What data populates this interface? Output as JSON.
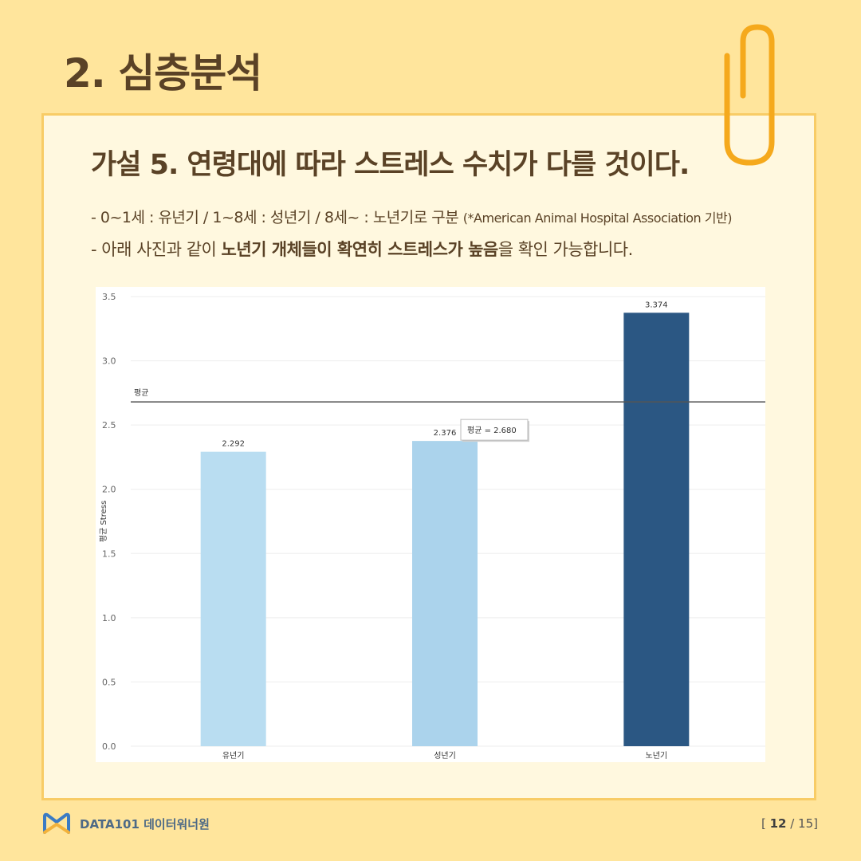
{
  "header": {
    "section_title": "2. 심층분석",
    "hypothesis": "가설 5. 연령대에 따라 스트레스 수치가 다를 것이다."
  },
  "description": {
    "line1_main": "- 0~1세 : 유년기 / 1~8세 : 성년기 / 8세~ : 노년기로 구분",
    "line1_note": "(*American Animal Hospital Association 기반)",
    "line2_pre": "- 아래 사진과 같이 ",
    "line2_bold1": "노년기 개체들이 확연히 스트레스가 높음",
    "line2_post": "을 확인 가능합니다."
  },
  "chart_data": {
    "type": "bar",
    "categories": [
      "유년기",
      "성년기",
      "노년기"
    ],
    "values": [
      2.292,
      2.376,
      3.374
    ],
    "value_labels": [
      "2.292",
      "2.376",
      "3.374"
    ],
    "bar_colors": [
      "#B9DDF1",
      "#ABD3EC",
      "#2B5783"
    ],
    "ylabel": "평균 Stress",
    "ylim": [
      0,
      3.5
    ],
    "y_ticks": [
      "0.0",
      "0.5",
      "1.0",
      "1.5",
      "2.0",
      "2.5",
      "3.0",
      "3.5"
    ],
    "reference_line": {
      "label": "평균",
      "value": 2.68,
      "tooltip": "평균 = 2.680"
    },
    "grid": true
  },
  "footer": {
    "brand": "DATA101 데이터워너원",
    "page_current": "12",
    "page_total": "15"
  },
  "colors": {
    "background": "#FFE59C",
    "card": "#FFF8DF",
    "card_border": "#F8CC66",
    "title_text": "#5A4226",
    "clip": "#F5A91C"
  },
  "icons": {
    "clip": "paperclip-icon",
    "logo": "data101-logo-icon"
  }
}
